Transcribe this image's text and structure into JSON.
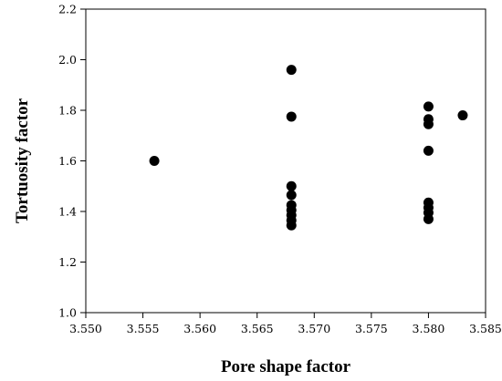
{
  "chart_data": {
    "type": "scatter",
    "title": "",
    "xlabel": "Pore shape factor",
    "ylabel": "Tortuosity factor",
    "xlim": [
      3.55,
      3.585
    ],
    "ylim": [
      1.0,
      2.2
    ],
    "xticks": [
      "3.550",
      "3.555",
      "3.560",
      "3.565",
      "3.570",
      "3.575",
      "3.580",
      "3.585"
    ],
    "yticks": [
      "1.0",
      "1.2",
      "1.4",
      "1.6",
      "1.8",
      "2.0",
      "2.2"
    ],
    "grid": false,
    "legend": false,
    "marker_color": "#000000",
    "series": [
      {
        "points": [
          {
            "x": 3.556,
            "y": 1.6
          },
          {
            "x": 3.568,
            "y": 1.96
          },
          {
            "x": 3.568,
            "y": 1.775
          },
          {
            "x": 3.568,
            "y": 1.5
          },
          {
            "x": 3.568,
            "y": 1.465
          },
          {
            "x": 3.568,
            "y": 1.425
          },
          {
            "x": 3.568,
            "y": 1.405
          },
          {
            "x": 3.568,
            "y": 1.385
          },
          {
            "x": 3.568,
            "y": 1.365
          },
          {
            "x": 3.568,
            "y": 1.345
          },
          {
            "x": 3.58,
            "y": 1.815
          },
          {
            "x": 3.58,
            "y": 1.765
          },
          {
            "x": 3.58,
            "y": 1.745
          },
          {
            "x": 3.58,
            "y": 1.64
          },
          {
            "x": 3.58,
            "y": 1.435
          },
          {
            "x": 3.58,
            "y": 1.415
          },
          {
            "x": 3.58,
            "y": 1.395
          },
          {
            "x": 3.58,
            "y": 1.37
          },
          {
            "x": 3.583,
            "y": 1.78
          }
        ]
      }
    ]
  }
}
